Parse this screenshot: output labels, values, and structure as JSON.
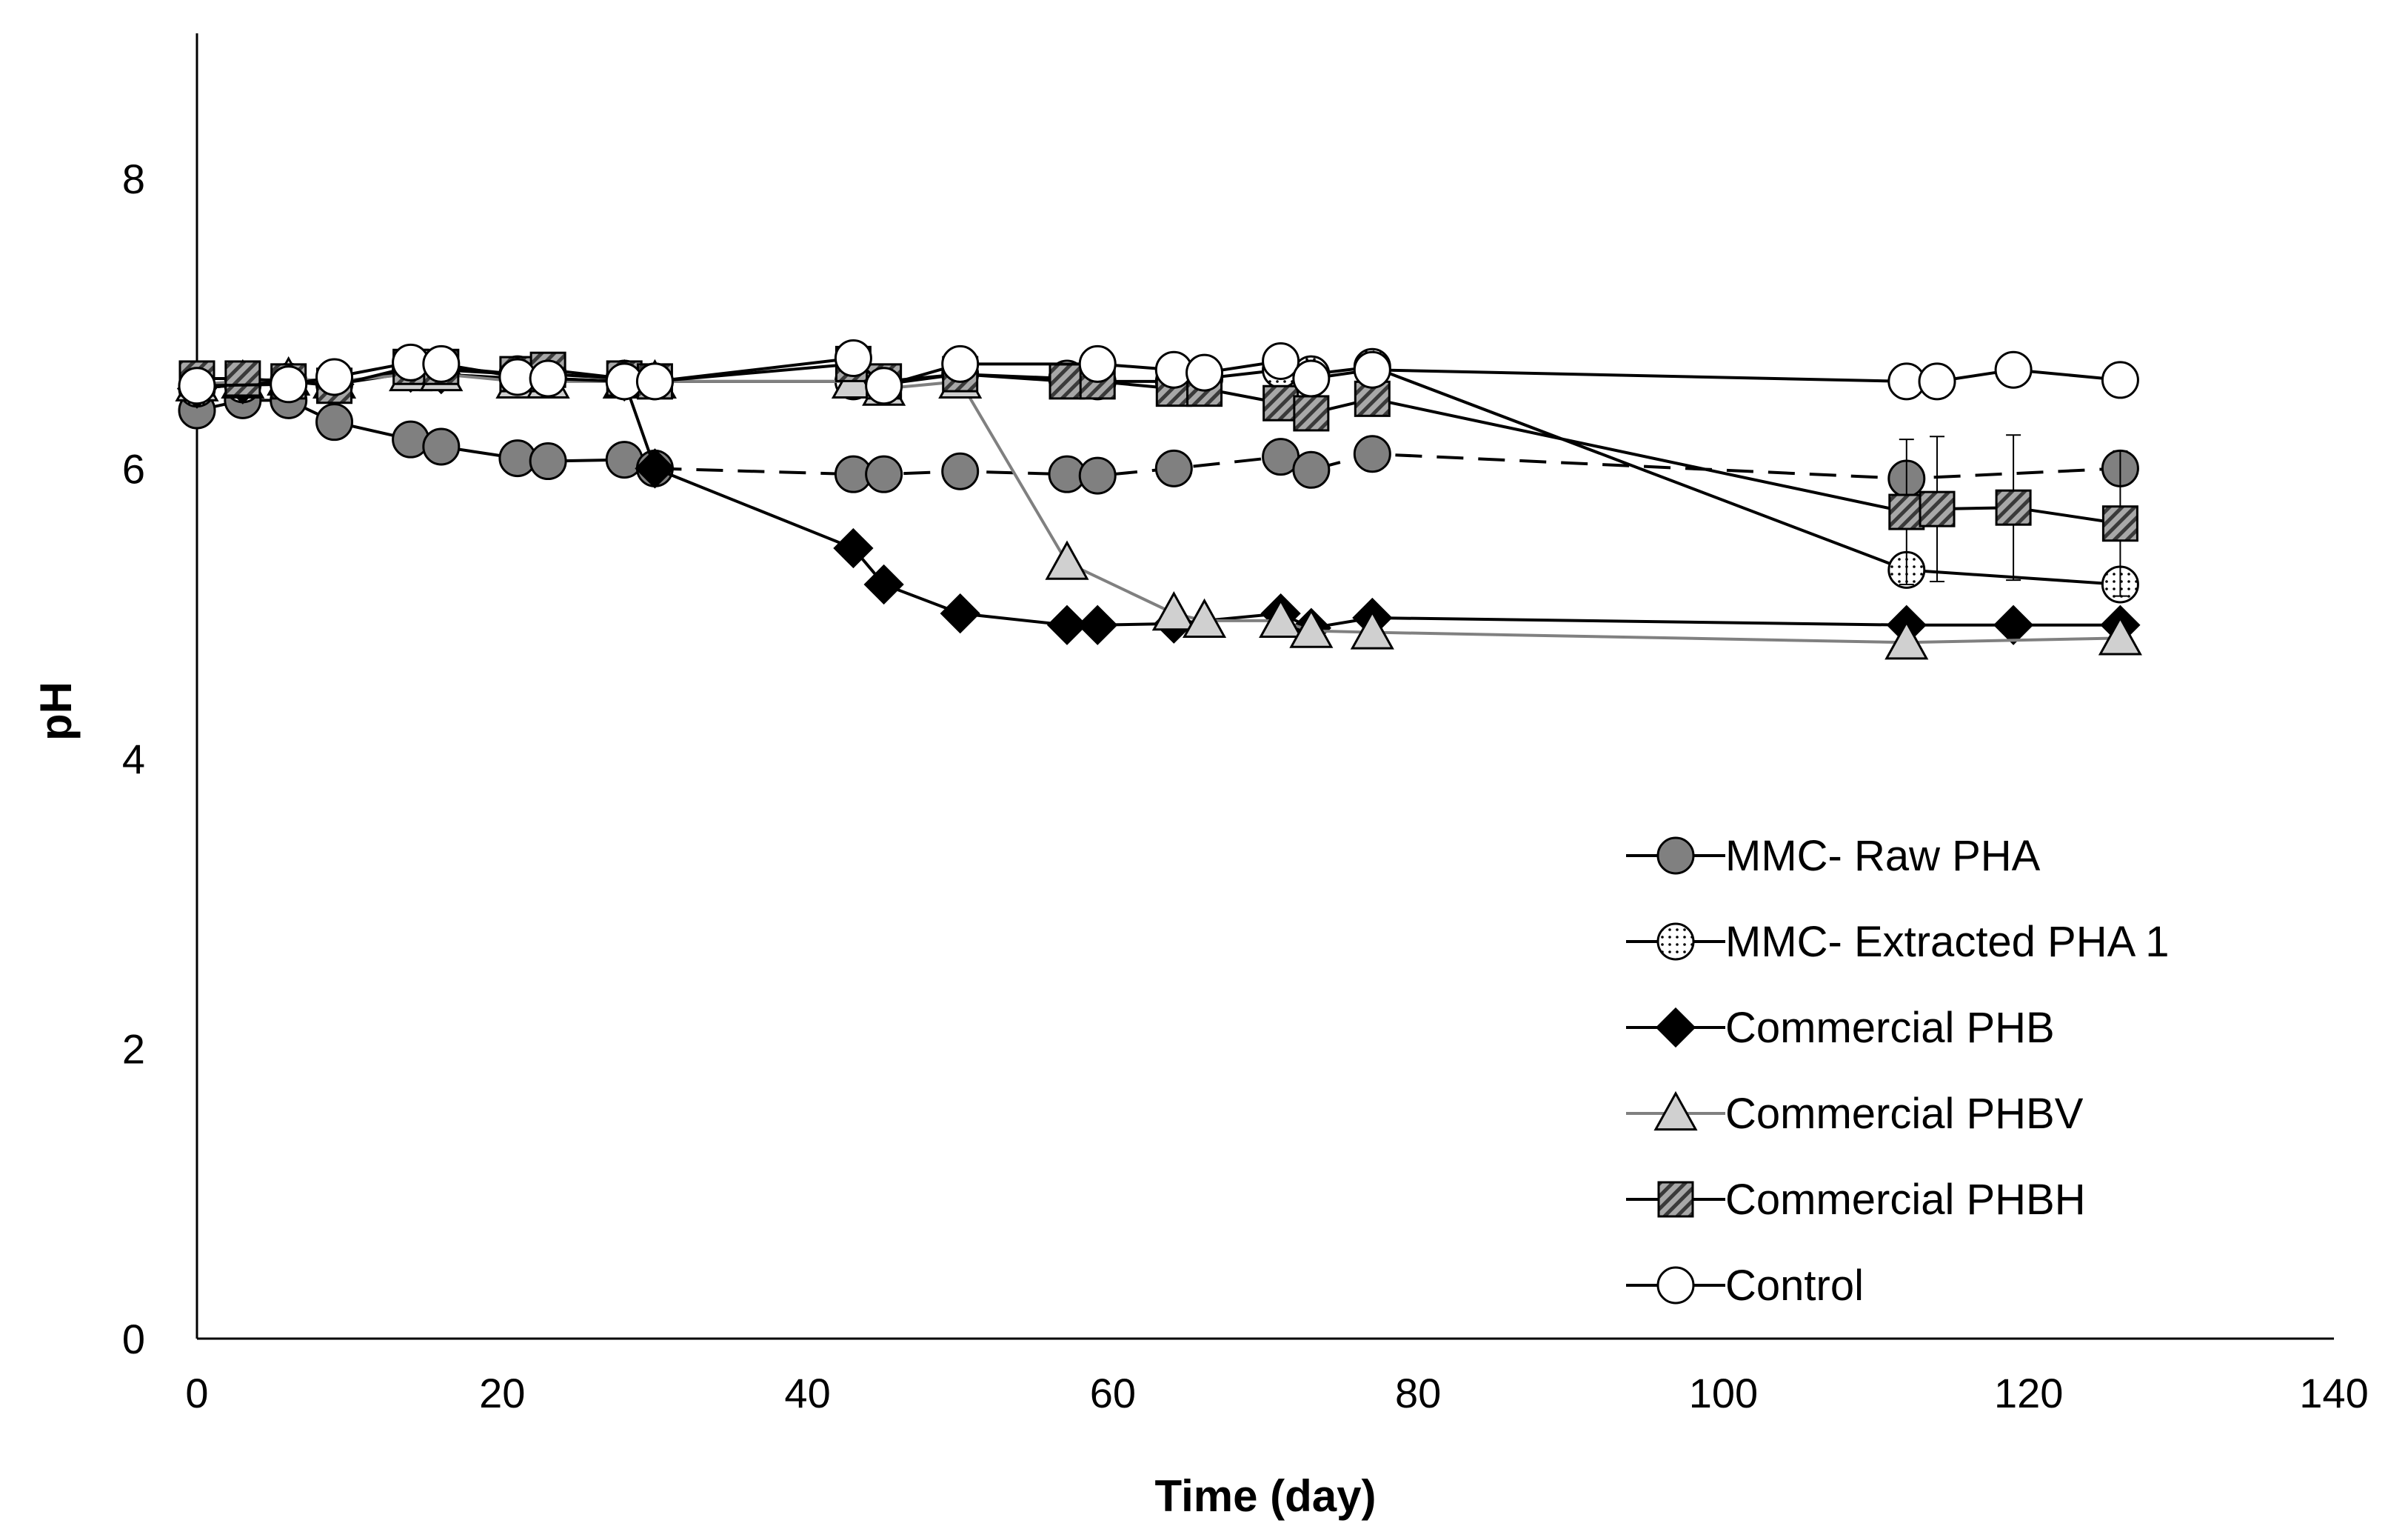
{
  "chart_data": {
    "type": "line",
    "title": "",
    "xlabel": "Time (day)",
    "ylabel": "pH",
    "xlim": [
      0,
      140
    ],
    "ylim": [
      0,
      9
    ],
    "xticks": [
      0,
      20,
      40,
      60,
      80,
      100,
      120,
      140
    ],
    "yticks": [
      0,
      2,
      4,
      6,
      8
    ],
    "grid": false,
    "legend_position": "bottom-right",
    "series": [
      {
        "name": "MMC- Raw PHA",
        "marker": "circle-filled",
        "line_color": "#000000",
        "marker_fill": "#808080",
        "dashed_from_index": 9,
        "x": [
          0,
          3,
          6,
          9,
          14,
          16,
          21,
          23,
          28,
          30,
          43,
          45,
          50,
          57,
          59,
          64,
          71,
          73,
          77,
          112,
          126
        ],
        "y": [
          6.4,
          6.47,
          6.47,
          6.32,
          6.2,
          6.15,
          6.07,
          6.05,
          6.06,
          6.0,
          5.96,
          5.96,
          5.98,
          5.96,
          5.95,
          6.0,
          6.08,
          5.99,
          6.1,
          5.93,
          6.0
        ]
      },
      {
        "name": "MMC- Extracted PHA 1",
        "marker": "circle-dotted",
        "line_color": "#000000",
        "marker_fill": "#ffffff",
        "x": [
          0,
          3,
          6,
          9,
          14,
          16,
          21,
          23,
          28,
          30,
          43,
          45,
          50,
          57,
          59,
          64,
          66,
          71,
          73,
          77,
          112,
          126
        ],
        "y": [
          6.55,
          6.58,
          6.6,
          6.58,
          6.68,
          6.68,
          6.65,
          6.65,
          6.62,
          6.6,
          6.6,
          6.58,
          6.65,
          6.62,
          6.6,
          6.6,
          6.62,
          6.68,
          6.65,
          6.7,
          5.3,
          5.2
        ]
      },
      {
        "name": "Commercial PHB",
        "marker": "diamond-filled",
        "line_color": "#000000",
        "marker_fill": "#000000",
        "x": [
          0,
          3,
          6,
          9,
          14,
          16,
          21,
          23,
          28,
          30,
          43,
          45,
          50,
          57,
          59,
          64,
          71,
          73,
          77,
          112,
          119,
          126
        ],
        "y": [
          6.55,
          6.58,
          6.6,
          6.58,
          6.66,
          6.65,
          6.62,
          6.62,
          6.6,
          6.0,
          5.45,
          5.2,
          5.0,
          4.92,
          4.92,
          4.93,
          5.0,
          4.9,
          4.97,
          4.92,
          4.92,
          4.92
        ]
      },
      {
        "name": "Commercial PHBV",
        "marker": "triangle",
        "line_color": "#808080",
        "marker_fill": "#d0d0d0",
        "x": [
          0,
          3,
          6,
          9,
          14,
          16,
          21,
          23,
          28,
          30,
          43,
          45,
          50,
          57,
          64,
          66,
          71,
          73,
          77,
          112,
          126
        ],
        "y": [
          6.58,
          6.6,
          6.62,
          6.6,
          6.65,
          6.65,
          6.6,
          6.6,
          6.6,
          6.6,
          6.6,
          6.55,
          6.6,
          5.35,
          5.0,
          4.95,
          4.95,
          4.88,
          4.87,
          4.8,
          4.83
        ]
      },
      {
        "name": "Commercial PHBH",
        "marker": "square-hatched",
        "line_color": "#000000",
        "marker_fill": "#909090",
        "error_bar": 0.5,
        "x": [
          0,
          3,
          6,
          9,
          14,
          16,
          21,
          23,
          28,
          30,
          43,
          45,
          50,
          57,
          59,
          64,
          66,
          71,
          73,
          77,
          112,
          114,
          119,
          126
        ],
        "y": [
          6.62,
          6.62,
          6.6,
          6.57,
          6.7,
          6.7,
          6.65,
          6.68,
          6.62,
          6.6,
          6.72,
          6.6,
          6.65,
          6.6,
          6.6,
          6.55,
          6.55,
          6.45,
          6.38,
          6.48,
          5.7,
          5.72,
          5.73,
          5.62
        ]
      },
      {
        "name": "Control",
        "marker": "circle-open",
        "line_color": "#000000",
        "marker_fill": "#ffffff",
        "x": [
          0,
          6,
          9,
          14,
          16,
          21,
          23,
          28,
          30,
          43,
          45,
          50,
          59,
          64,
          66,
          71,
          73,
          77,
          112,
          114,
          119,
          126
        ],
        "y": [
          6.57,
          6.58,
          6.63,
          6.73,
          6.72,
          6.63,
          6.62,
          6.6,
          6.6,
          6.76,
          6.57,
          6.72,
          6.72,
          6.68,
          6.66,
          6.74,
          6.62,
          6.68,
          6.6,
          6.6,
          6.68,
          6.61
        ]
      }
    ]
  }
}
